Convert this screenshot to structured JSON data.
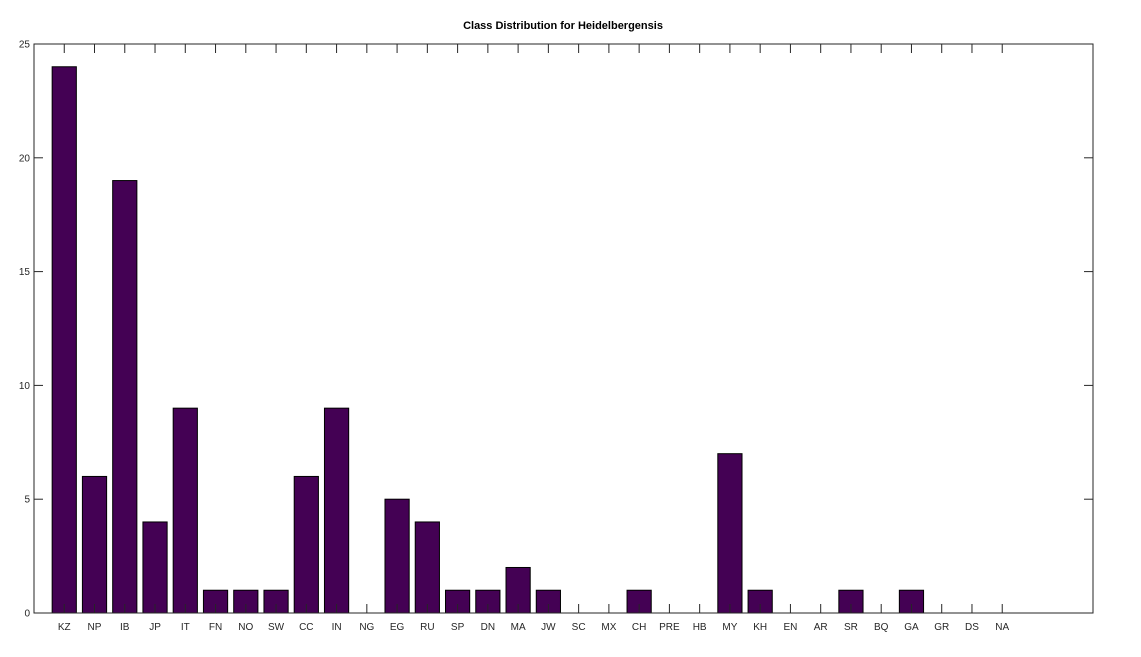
{
  "chart_data": {
    "type": "bar",
    "title": "Class Distribution for Heidelbergensis",
    "xlabel": "",
    "ylabel": "",
    "categories": [
      "KZ",
      "NP",
      "IB",
      "JP",
      "IT",
      "FN",
      "NO",
      "SW",
      "CC",
      "IN",
      "NG",
      "EG",
      "RU",
      "SP",
      "DN",
      "MA",
      "JW",
      "SC",
      "MX",
      "CH",
      "PRE",
      "HB",
      "MY",
      "KH",
      "EN",
      "AR",
      "SR",
      "BQ",
      "GA",
      "GR",
      "DS",
      "NA"
    ],
    "values": [
      24,
      6,
      19,
      4,
      9,
      1,
      1,
      1,
      6,
      9,
      0,
      5,
      4,
      1,
      1,
      2,
      1,
      0,
      0,
      1,
      0,
      0,
      7,
      1,
      0,
      0,
      1,
      0,
      1,
      0,
      0,
      0
    ],
    "ylim": [
      0,
      25
    ],
    "yticks": [
      0,
      5,
      10,
      15,
      20,
      25
    ],
    "xlim": [
      0,
      35
    ],
    "grid": false,
    "bar_color": "#440154"
  }
}
